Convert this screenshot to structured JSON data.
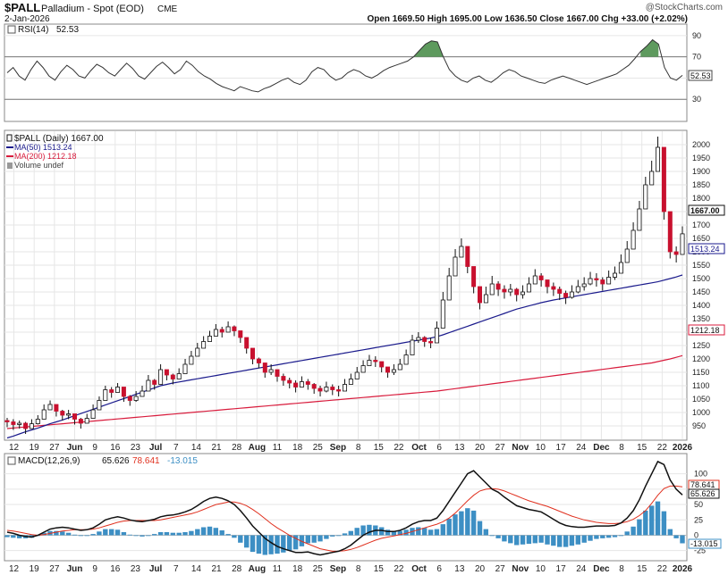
{
  "header": {
    "symbol": "$PALL",
    "name": "Palladium - Spot (EOD)",
    "exchange": "CME",
    "date": "2-Jan-2026",
    "copyright": "@StockCharts.com",
    "ohlc_text": "Open 1669.50  High 1695.00  Low 1636.50  Close 1667.00  Chg +33.00 (+2.02%)"
  },
  "colors": {
    "up": "#ffffff",
    "down": "#c8102e",
    "ma50": "#1a1a8c",
    "ma200": "#d81b3c",
    "rsi_line": "#333333",
    "rsi_fill": "#5e9a5e",
    "macd_line": "#111111",
    "signal_line": "#e0301e",
    "histogram": "#3d8fc4",
    "grid": "#e6e6e6"
  },
  "chart_data": [
    {
      "type": "line",
      "panel": "rsi",
      "title": "RSI(14) 52.53",
      "label": "RSI(14)",
      "last_value": 52.53,
      "last_label": "52.53",
      "ylim": [
        10,
        100
      ],
      "yticks": [
        30,
        50,
        70,
        90
      ],
      "reference_lines": [
        30,
        70
      ],
      "series": [
        {
          "name": "RSI(14)",
          "values": [
            55,
            60,
            52,
            48,
            58,
            66,
            60,
            52,
            48,
            56,
            62,
            58,
            52,
            50,
            57,
            63,
            60,
            55,
            52,
            58,
            64,
            59,
            52,
            49,
            55,
            61,
            65,
            60,
            54,
            58,
            66,
            62,
            56,
            52,
            49,
            45,
            42,
            40,
            38,
            42,
            40,
            38,
            37,
            40,
            42,
            45,
            48,
            50,
            46,
            44,
            48,
            56,
            60,
            58,
            52,
            48,
            50,
            55,
            58,
            56,
            52,
            50,
            53,
            57,
            60,
            62,
            64,
            66,
            70,
            76,
            82,
            85,
            84,
            70,
            58,
            52,
            48,
            46,
            50,
            52,
            48,
            46,
            50,
            55,
            58,
            56,
            52,
            50,
            48,
            46,
            45,
            48,
            50,
            52,
            50,
            48,
            46,
            44,
            46,
            48,
            50,
            52,
            54,
            58,
            62,
            68,
            75,
            80,
            86,
            82,
            60,
            50,
            48,
            52.53
          ]
        }
      ]
    },
    {
      "type": "candlestick",
      "panel": "price",
      "title": "$PALL (Daily) 1667.00",
      "legend": [
        "$PALL (Daily) 1667.00",
        "MA(50) 1513.24",
        "MA(200) 1212.18",
        "Volume undef"
      ],
      "ylim": [
        900,
        2050
      ],
      "yticks": [
        950,
        1000,
        1050,
        1100,
        1150,
        1200,
        1250,
        1300,
        1350,
        1400,
        1450,
        1500,
        1550,
        1600,
        1650,
        1700,
        1750,
        1800,
        1850,
        1900,
        1950,
        2000
      ],
      "last_labels": {
        "close": "1667.00",
        "ma50": "1513.24",
        "ma200": "1212.18"
      },
      "close": [
        965,
        955,
        960,
        940,
        958,
        975,
        1010,
        1030,
        1005,
        990,
        995,
        975,
        960,
        978,
        1010,
        1045,
        1085,
        1075,
        1095,
        1060,
        1045,
        1060,
        1080,
        1120,
        1105,
        1160,
        1140,
        1125,
        1145,
        1180,
        1210,
        1240,
        1265,
        1285,
        1310,
        1300,
        1320,
        1305,
        1280,
        1240,
        1200,
        1185,
        1150,
        1160,
        1135,
        1120,
        1110,
        1095,
        1115,
        1105,
        1090,
        1080,
        1095,
        1085,
        1080,
        1105,
        1125,
        1150,
        1175,
        1195,
        1190,
        1170,
        1150,
        1160,
        1180,
        1215,
        1270,
        1280,
        1265,
        1260,
        1315,
        1420,
        1510,
        1580,
        1620,
        1545,
        1470,
        1410,
        1440,
        1480,
        1460,
        1450,
        1460,
        1440,
        1450,
        1480,
        1510,
        1495,
        1470,
        1460,
        1445,
        1430,
        1450,
        1470,
        1480,
        1500,
        1495,
        1480,
        1505,
        1520,
        1560,
        1610,
        1680,
        1760,
        1850,
        1900,
        1990,
        1750,
        1600,
        1590,
        1667
      ],
      "high": [
        980,
        975,
        970,
        965,
        975,
        990,
        1030,
        1045,
        1020,
        1010,
        1010,
        995,
        980,
        995,
        1030,
        1060,
        1100,
        1095,
        1110,
        1080,
        1065,
        1080,
        1100,
        1140,
        1125,
        1180,
        1160,
        1145,
        1165,
        1200,
        1230,
        1260,
        1285,
        1305,
        1330,
        1320,
        1340,
        1325,
        1300,
        1265,
        1225,
        1205,
        1175,
        1180,
        1160,
        1145,
        1130,
        1120,
        1135,
        1125,
        1110,
        1100,
        1115,
        1105,
        1100,
        1125,
        1145,
        1170,
        1195,
        1215,
        1210,
        1190,
        1170,
        1180,
        1200,
        1235,
        1290,
        1300,
        1285,
        1280,
        1340,
        1450,
        1540,
        1610,
        1650,
        1580,
        1500,
        1440,
        1470,
        1510,
        1490,
        1475,
        1480,
        1465,
        1475,
        1505,
        1535,
        1520,
        1495,
        1485,
        1470,
        1455,
        1475,
        1495,
        1505,
        1525,
        1520,
        1505,
        1530,
        1545,
        1590,
        1640,
        1710,
        1790,
        1880,
        1940,
        2030,
        1800,
        1640,
        1620,
        1695
      ],
      "low": [
        945,
        935,
        940,
        920,
        940,
        955,
        990,
        1010,
        985,
        970,
        975,
        955,
        940,
        960,
        990,
        1025,
        1065,
        1055,
        1075,
        1040,
        1025,
        1040,
        1060,
        1100,
        1085,
        1140,
        1120,
        1105,
        1125,
        1160,
        1190,
        1220,
        1245,
        1265,
        1290,
        1280,
        1300,
        1285,
        1260,
        1220,
        1180,
        1165,
        1130,
        1140,
        1115,
        1100,
        1090,
        1075,
        1095,
        1085,
        1070,
        1060,
        1075,
        1065,
        1060,
        1085,
        1105,
        1130,
        1155,
        1175,
        1170,
        1150,
        1130,
        1140,
        1160,
        1195,
        1250,
        1260,
        1245,
        1240,
        1295,
        1400,
        1485,
        1555,
        1595,
        1520,
        1445,
        1385,
        1415,
        1455,
        1435,
        1425,
        1435,
        1415,
        1425,
        1455,
        1485,
        1470,
        1445,
        1435,
        1420,
        1405,
        1425,
        1445,
        1455,
        1475,
        1470,
        1455,
        1480,
        1495,
        1535,
        1585,
        1655,
        1735,
        1820,
        1870,
        1960,
        1720,
        1575,
        1560,
        1636.5
      ],
      "ma50": [
        905,
        912,
        920,
        928,
        935,
        942,
        950,
        958,
        965,
        972,
        980,
        988,
        996,
        1004,
        1012,
        1020,
        1028,
        1036,
        1044,
        1052,
        1060,
        1068,
        1076,
        1084,
        1092,
        1100,
        1105,
        1110,
        1114,
        1118,
        1122,
        1126,
        1130,
        1134,
        1138,
        1142,
        1146,
        1150,
        1154,
        1158,
        1162,
        1166,
        1170,
        1174,
        1178,
        1182,
        1186,
        1190,
        1194,
        1198,
        1202,
        1206,
        1210,
        1214,
        1218,
        1222,
        1226,
        1230,
        1234,
        1238,
        1242,
        1246,
        1250,
        1254,
        1258,
        1262,
        1266,
        1270,
        1274,
        1278,
        1283,
        1290,
        1298,
        1306,
        1314,
        1322,
        1330,
        1338,
        1346,
        1354,
        1362,
        1370,
        1378,
        1386,
        1392,
        1398,
        1404,
        1410,
        1415,
        1420,
        1424,
        1428,
        1432,
        1436,
        1440,
        1444,
        1448,
        1452,
        1456,
        1460,
        1464,
        1468,
        1472,
        1476,
        1480,
        1484,
        1488,
        1494,
        1500,
        1506,
        1513.24
      ],
      "ma200": [
        940,
        942,
        944,
        946,
        948,
        950,
        952,
        954,
        956,
        958,
        960,
        962,
        964,
        966,
        968,
        970,
        972,
        974,
        976,
        978,
        980,
        982,
        984,
        986,
        988,
        990,
        992,
        994,
        996,
        998,
        1000,
        1002,
        1004,
        1006,
        1008,
        1010,
        1012,
        1014,
        1016,
        1018,
        1020,
        1022,
        1024,
        1026,
        1028,
        1030,
        1032,
        1034,
        1036,
        1038,
        1040,
        1042,
        1044,
        1046,
        1048,
        1050,
        1052,
        1054,
        1056,
        1058,
        1060,
        1062,
        1064,
        1066,
        1068,
        1070,
        1072,
        1074,
        1076,
        1078,
        1080,
        1083,
        1086,
        1089,
        1092,
        1095,
        1098,
        1101,
        1104,
        1107,
        1110,
        1113,
        1116,
        1119,
        1122,
        1125,
        1128,
        1131,
        1134,
        1137,
        1140,
        1143,
        1146,
        1149,
        1152,
        1155,
        1158,
        1161,
        1164,
        1167,
        1170,
        1173,
        1176,
        1179,
        1182,
        1185,
        1190,
        1195,
        1200,
        1206,
        1212.18
      ],
      "xticks": [
        {
          "i": 1,
          "label": "12"
        },
        {
          "i": 4,
          "label": "19"
        },
        {
          "i": 7,
          "label": "27"
        },
        {
          "i": 10,
          "label": "Jun"
        },
        {
          "i": 13,
          "label": "9"
        },
        {
          "i": 16,
          "label": "16"
        },
        {
          "i": 19,
          "label": "23"
        },
        {
          "i": 22,
          "label": "Jul"
        },
        {
          "i": 25,
          "label": "7"
        },
        {
          "i": 28,
          "label": "14"
        },
        {
          "i": 31,
          "label": "21"
        },
        {
          "i": 34,
          "label": "28"
        },
        {
          "i": 37,
          "label": "Aug"
        },
        {
          "i": 40,
          "label": "11"
        },
        {
          "i": 43,
          "label": "18"
        },
        {
          "i": 46,
          "label": "25"
        },
        {
          "i": 49,
          "label": "Sep"
        },
        {
          "i": 52,
          "label": "8"
        },
        {
          "i": 55,
          "label": "15"
        },
        {
          "i": 58,
          "label": "22"
        },
        {
          "i": 61,
          "label": "Oct"
        },
        {
          "i": 64,
          "label": "6"
        },
        {
          "i": 67,
          "label": "13"
        },
        {
          "i": 70,
          "label": "20"
        },
        {
          "i": 73,
          "label": "27"
        },
        {
          "i": 76,
          "label": "Nov"
        },
        {
          "i": 79,
          "label": "10"
        },
        {
          "i": 82,
          "label": "17"
        },
        {
          "i": 85,
          "label": "24"
        },
        {
          "i": 88,
          "label": "Dec"
        },
        {
          "i": 91,
          "label": "8"
        },
        {
          "i": 94,
          "label": "15"
        },
        {
          "i": 97,
          "label": "22"
        },
        {
          "i": 100,
          "label": "2026"
        }
      ]
    },
    {
      "type": "line",
      "panel": "macd",
      "title": "MACD(12,26,9) 65.626, 78.641, -13.015",
      "label": "MACD(12,26,9)",
      "values_text": [
        "65.626",
        "78.641",
        "-13.015"
      ],
      "ylim": [
        -40,
        130
      ],
      "yticks": [
        -25,
        0,
        25,
        50,
        75,
        100
      ],
      "last_labels": {
        "macd": "65.626",
        "signal": "78.641",
        "hist": "-13.015"
      },
      "series": [
        {
          "name": "MACD",
          "values": [
            5,
            3,
            0,
            -2,
            -3,
            0,
            5,
            10,
            12,
            13,
            12,
            10,
            8,
            9,
            12,
            18,
            25,
            28,
            30,
            28,
            25,
            23,
            22,
            24,
            26,
            30,
            32,
            33,
            35,
            38,
            42,
            48,
            55,
            60,
            62,
            60,
            56,
            50,
            40,
            28,
            15,
            5,
            -5,
            -12,
            -18,
            -22,
            -25,
            -28,
            -28,
            -27,
            -30,
            -32,
            -30,
            -28,
            -26,
            -22,
            -16,
            -8,
            0,
            5,
            8,
            8,
            6,
            6,
            8,
            12,
            18,
            22,
            24,
            24,
            28,
            40,
            55,
            70,
            85,
            100,
            105,
            95,
            85,
            75,
            70,
            62,
            55,
            48,
            45,
            42,
            40,
            38,
            32,
            26,
            20,
            16,
            14,
            13,
            13,
            14,
            15,
            15,
            15,
            16,
            20,
            28,
            40,
            58,
            80,
            100,
            120,
            115,
            90,
            75,
            65.626
          ]
        },
        {
          "name": "Signal",
          "values": [
            8,
            7,
            5,
            3,
            1,
            0,
            1,
            3,
            5,
            7,
            8,
            9,
            9,
            9,
            10,
            12,
            15,
            18,
            21,
            23,
            24,
            24,
            24,
            24,
            24,
            25,
            27,
            29,
            31,
            33,
            35,
            38,
            42,
            46,
            50,
            52,
            54,
            54,
            52,
            48,
            42,
            35,
            27,
            19,
            12,
            6,
            0,
            -5,
            -10,
            -14,
            -18,
            -22,
            -24,
            -26,
            -26,
            -25,
            -23,
            -20,
            -16,
            -12,
            -8,
            -5,
            -3,
            -1,
            1,
            3,
            6,
            9,
            12,
            15,
            18,
            22,
            28,
            36,
            46,
            56,
            65,
            72,
            75,
            76,
            75,
            72,
            68,
            64,
            60,
            56,
            53,
            50,
            47,
            43,
            39,
            35,
            31,
            28,
            25,
            23,
            21,
            20,
            19,
            19,
            20,
            22,
            26,
            32,
            40,
            52,
            65,
            76,
            80,
            80,
            78.641
          ]
        }
      ],
      "histogram": [
        -3,
        -4,
        -5,
        -5,
        -4,
        0,
        4,
        7,
        7,
        6,
        4,
        1,
        -1,
        0,
        2,
        6,
        10,
        10,
        9,
        5,
        1,
        -1,
        -2,
        0,
        2,
        5,
        5,
        4,
        4,
        5,
        7,
        10,
        13,
        14,
        12,
        8,
        2,
        -4,
        -12,
        -20,
        -27,
        -30,
        -32,
        -31,
        -30,
        -28,
        -25,
        -23,
        -18,
        -13,
        -12,
        -10,
        -6,
        -2,
        0,
        3,
        7,
        12,
        16,
        17,
        16,
        13,
        9,
        7,
        7,
        9,
        12,
        13,
        12,
        9,
        10,
        18,
        27,
        34,
        39,
        44,
        40,
        23,
        10,
        -1,
        -5,
        -10,
        -13,
        -16,
        -15,
        -14,
        -13,
        -12,
        -15,
        -17,
        -19,
        -19,
        -17,
        -15,
        -12,
        -9,
        -6,
        -5,
        -4,
        -3,
        0,
        6,
        14,
        26,
        40,
        48,
        55,
        39,
        10,
        -5,
        -13.015
      ]
    }
  ]
}
